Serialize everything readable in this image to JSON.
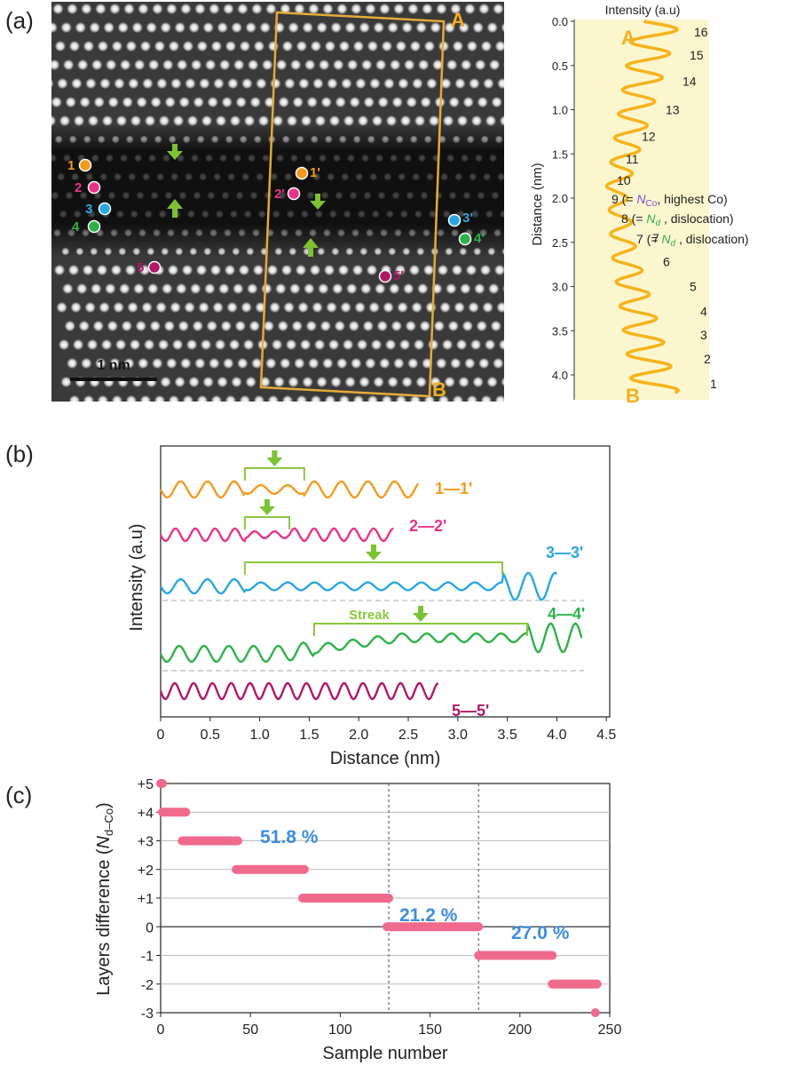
{
  "panel_labels": {
    "a": "(a)",
    "b": "(b)",
    "c": "(c)"
  },
  "panel_a": {
    "scale_bar": "1 nm",
    "box_labels": {
      "top": "A",
      "bottom": "B"
    },
    "arrow_color": "#7cc234",
    "box_color": "#e8a93a",
    "points": [
      {
        "label": "1",
        "color": "#f39a1e"
      },
      {
        "label": "2",
        "color": "#e8338a"
      },
      {
        "label": "3",
        "color": "#2aa6e0"
      },
      {
        "label": "4",
        "color": "#2db24a"
      },
      {
        "label": "5",
        "color": "#b0186a"
      },
      {
        "label": "1'",
        "color": "#f39a1e"
      },
      {
        "label": "2'",
        "color": "#e8338a"
      },
      {
        "label": "3'",
        "color": "#2aa6e0"
      },
      {
        "label": "4'",
        "color": "#2db24a"
      },
      {
        "label": "5'",
        "color": "#b0186a"
      }
    ]
  },
  "profile": {
    "title": "Intensity (a.u)",
    "ylabel": "Distance (nm)",
    "yticks": [
      "0.0",
      "0.5",
      "1.0",
      "1.5",
      "2.0",
      "2.5",
      "3.0",
      "3.5",
      "4.0"
    ],
    "top_marker": "A",
    "bottom_marker": "B",
    "background": "#fcf6cf",
    "line_color": "#f6b31a",
    "peaks": [
      {
        "n": "16",
        "d": 0.12
      },
      {
        "n": "15",
        "d": 0.38
      },
      {
        "n": "14",
        "d": 0.68
      },
      {
        "n": "13",
        "d": 1.0
      },
      {
        "n": "12",
        "d": 1.3
      },
      {
        "n": "11",
        "d": 1.56
      },
      {
        "n": "10",
        "d": 1.8
      },
      {
        "n": "7",
        "d": 2.45
      },
      {
        "n": "6",
        "d": 2.72
      },
      {
        "n": "5",
        "d": 3.0
      },
      {
        "n": "4",
        "d": 3.28
      },
      {
        "n": "3",
        "d": 3.55
      },
      {
        "n": "2",
        "d": 3.82
      },
      {
        "n": "1",
        "d": 4.1
      }
    ],
    "annotations": {
      "p9_pre": "9 (= ",
      "p9_var": "N",
      "p9_sub": "Co",
      "p9_post": ", highest Co)",
      "p8_pre": "8 (= ",
      "p8_var": "N",
      "p8_sub": "d",
      "p8_post": " , dislocation)",
      "p7_pre": "7 (= ",
      "p7_var": "N",
      "p7_sub": "d",
      "p7_post": " , dislocation)",
      "nco_color": "#7a4fcf",
      "nd_color": "#2db24a"
    }
  },
  "chart_data": [
    {
      "type": "line",
      "panel": "b",
      "xlabel": "Distance (nm)",
      "ylabel": "Intensity (a.u)",
      "xlim": [
        0,
        4.5
      ],
      "xticks": [
        "0",
        "0.5",
        "1.0",
        "1.5",
        "2.0",
        "2.5",
        "3.0",
        "3.5",
        "4.0",
        "4.5"
      ],
      "series": [
        {
          "name": "1—1'",
          "color": "#f39a1e",
          "x_end": 2.6,
          "streak": [
            0.85,
            1.45
          ]
        },
        {
          "name": "2—2'",
          "color": "#e8338a",
          "x_end": 2.35,
          "streak": [
            0.85,
            1.3
          ]
        },
        {
          "name": "3—3'",
          "color": "#2aa6e0",
          "x_end": 4.0,
          "streak": [
            0.85,
            3.45
          ]
        },
        {
          "name": "4—4'",
          "color": "#2db24a",
          "x_end": 4.25,
          "streak": [
            1.55,
            3.7
          ]
        },
        {
          "name": "5—5'",
          "color": "#b0186a",
          "x_end": 2.8,
          "streak": null
        }
      ],
      "streak_label": "Streak",
      "streak_color": "#8cc63f"
    },
    {
      "type": "scatter",
      "panel": "c",
      "xlabel": "Sample number",
      "ylabel_pre": "Layers difference (",
      "ylabel_var": "N",
      "ylabel_sub": "d–Co",
      "ylabel_post": ")",
      "xlim": [
        0,
        250
      ],
      "ylim": [
        -3,
        5
      ],
      "xticks": [
        "0",
        "50",
        "100",
        "150",
        "200",
        "250"
      ],
      "yticks": [
        "+5",
        "+4",
        "+3",
        "+2",
        "+1",
        "0",
        "-1",
        "-2",
        "-3"
      ],
      "color": "#f06a8c",
      "segments": [
        {
          "y": 5,
          "x": [
            0,
            1
          ]
        },
        {
          "y": 4,
          "x": [
            1,
            14
          ]
        },
        {
          "y": 3,
          "x": [
            12,
            43
          ]
        },
        {
          "y": 2,
          "x": [
            42,
            80
          ]
        },
        {
          "y": 1,
          "x": [
            79,
            127
          ]
        },
        {
          "y": 0,
          "x": [
            126,
            177
          ]
        },
        {
          "y": -1,
          "x": [
            177,
            218
          ]
        },
        {
          "y": -2,
          "x": [
            218,
            243
          ]
        },
        {
          "y": -3,
          "x": [
            242,
            242
          ]
        }
      ],
      "dividers": [
        127,
        177
      ],
      "percentages": [
        "51.8 %",
        "21.2 %",
        "27.0 %"
      ],
      "pct_color": "#3d8ee0"
    }
  ]
}
